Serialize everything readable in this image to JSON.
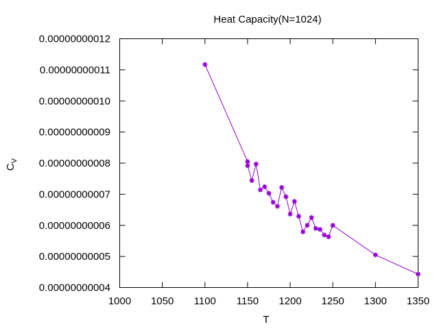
{
  "chart_data": {
    "type": "line",
    "title": "Heat Capacity(N=1024)",
    "xlabel": "T",
    "ylabel": {
      "main": "C",
      "sub": "V"
    },
    "xlim": [
      1000,
      1350
    ],
    "ylim": [
      4e-11,
      1.2e-10
    ],
    "x_ticks": [
      "1000",
      "1050",
      "1100",
      "1150",
      "1200",
      "1250",
      "1300",
      "1350"
    ],
    "y_ticks": [
      "0.00000000004",
      "0.00000000005",
      "0.00000000006",
      "0.00000000007",
      "0.00000000008",
      "0.00000000009",
      "0.00000000010",
      "0.00000000011",
      "0.00000000012"
    ],
    "grid": false,
    "series": [
      {
        "color": "#9400d3",
        "marker": "asterisk",
        "x": [
          1100,
          1150,
          1150,
          1155,
          1160,
          1165,
          1170,
          1175,
          1180,
          1185,
          1190,
          1195,
          1200,
          1205,
          1210,
          1215,
          1220,
          1225,
          1230,
          1235,
          1240,
          1245,
          1250,
          1300,
          1350
        ],
        "y": [
          1.117e-10,
          8.05e-11,
          7.92e-11,
          7.44e-11,
          7.97e-11,
          7.14e-11,
          7.24e-11,
          7.03e-11,
          6.74e-11,
          6.61e-11,
          7.22e-11,
          6.92e-11,
          6.36e-11,
          6.77e-11,
          6.29e-11,
          5.79e-11,
          6e-11,
          6.25e-11,
          5.9e-11,
          5.87e-11,
          5.69e-11,
          5.63e-11,
          6e-11,
          5.05e-11,
          4.43e-11
        ]
      }
    ]
  }
}
